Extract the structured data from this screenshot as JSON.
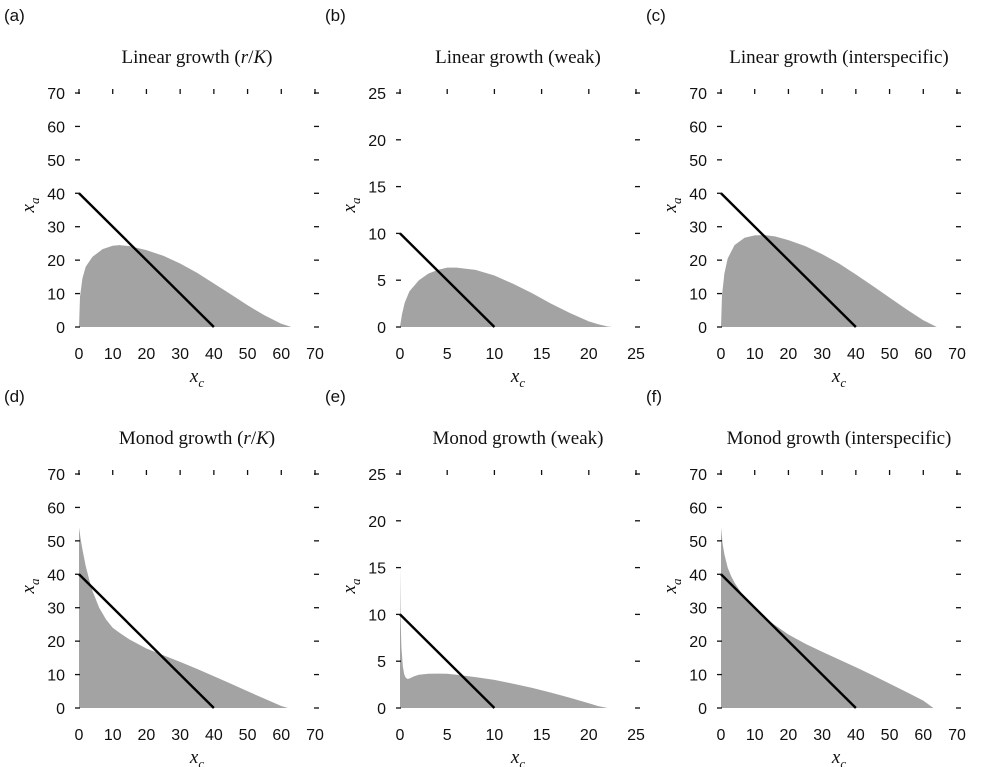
{
  "chart_data": [
    {
      "id": "a",
      "letter": "(a)",
      "title": "Linear growth (r/K)",
      "title_parts": [
        {
          "t": "Linear growth ("
        },
        {
          "t": "r",
          "i": true
        },
        {
          "t": "/"
        },
        {
          "t": "K",
          "i": true
        },
        {
          "t": ")"
        }
      ],
      "type": "area",
      "xlabel": "x",
      "xlabel_sub": "c",
      "ylabel": "x",
      "ylabel_sub": "a",
      "xlim": [
        0,
        70
      ],
      "ylim": [
        0,
        70
      ],
      "xticks": [
        0,
        10,
        20,
        30,
        40,
        50,
        60,
        70
      ],
      "yticks": [
        0,
        10,
        20,
        30,
        40,
        50,
        60,
        70
      ],
      "series": [
        {
          "name": "shaded region",
          "x": [
            0,
            0.3,
            1,
            2,
            4,
            7,
            10,
            12,
            15,
            20,
            25,
            30,
            35,
            40,
            45,
            50,
            55,
            60,
            63
          ],
          "y": [
            0,
            9,
            14.5,
            18,
            21,
            23.3,
            24.3,
            24.5,
            24.2,
            23,
            21.3,
            19,
            16.2,
            13,
            9.8,
            6.5,
            3.5,
            1,
            0
          ]
        },
        {
          "name": "nullcline",
          "x": [
            0,
            40
          ],
          "y": [
            40,
            0
          ]
        }
      ]
    },
    {
      "id": "b",
      "letter": "(b)",
      "title": "Linear growth (weak)",
      "title_parts": [
        {
          "t": "Linear growth (weak)"
        }
      ],
      "type": "area",
      "xlabel": "x",
      "xlabel_sub": "c",
      "ylabel": "x",
      "ylabel_sub": "a",
      "xlim": [
        0,
        25
      ],
      "ylim": [
        0,
        25
      ],
      "xticks": [
        0,
        5,
        10,
        15,
        20,
        25
      ],
      "yticks": [
        0,
        5,
        10,
        15,
        20,
        25
      ],
      "series": [
        {
          "name": "shaded region",
          "x": [
            0,
            0.2,
            0.5,
            1,
            2,
            3,
            4,
            5,
            6,
            8,
            10,
            12,
            14,
            16,
            18,
            20,
            21,
            22,
            22.5
          ],
          "y": [
            0,
            1.3,
            2.6,
            3.8,
            5,
            5.7,
            6.1,
            6.35,
            6.35,
            6.1,
            5.5,
            4.6,
            3.6,
            2.5,
            1.5,
            0.6,
            0.3,
            0.05,
            0
          ]
        },
        {
          "name": "nullcline",
          "x": [
            0,
            10
          ],
          "y": [
            10,
            0
          ]
        }
      ]
    },
    {
      "id": "c",
      "letter": "(c)",
      "title": "Linear growth (interspecific)",
      "title_parts": [
        {
          "t": "Linear growth (interspecific)"
        }
      ],
      "type": "area",
      "xlabel": "x",
      "xlabel_sub": "c",
      "ylabel": "x",
      "ylabel_sub": "a",
      "xlim": [
        0,
        70
      ],
      "ylim": [
        0,
        70
      ],
      "xticks": [
        0,
        10,
        20,
        30,
        40,
        50,
        60,
        70
      ],
      "yticks": [
        0,
        10,
        20,
        30,
        40,
        50,
        60,
        70
      ],
      "series": [
        {
          "name": "shaded region",
          "x": [
            0,
            0.3,
            1,
            2,
            4,
            7,
            10,
            13,
            16,
            20,
            25,
            30,
            35,
            40,
            45,
            50,
            55,
            60,
            64
          ],
          "y": [
            0,
            9.5,
            16,
            20.5,
            24.5,
            26.7,
            27.4,
            27.5,
            27.1,
            26,
            24.2,
            21.8,
            19,
            15.7,
            12.3,
            8.8,
            5.3,
            2,
            0
          ]
        },
        {
          "name": "nullcline",
          "x": [
            0,
            40
          ],
          "y": [
            40,
            0
          ]
        }
      ]
    },
    {
      "id": "d",
      "letter": "(d)",
      "title": "Monod growth (r/K)",
      "title_parts": [
        {
          "t": "Monod growth ("
        },
        {
          "t": "r",
          "i": true
        },
        {
          "t": "/"
        },
        {
          "t": "K",
          "i": true
        },
        {
          "t": ")"
        }
      ],
      "type": "area",
      "xlabel": "x",
      "xlabel_sub": "c",
      "ylabel": "x",
      "ylabel_sub": "a",
      "xlim": [
        0,
        70
      ],
      "ylim": [
        0,
        70
      ],
      "xticks": [
        0,
        10,
        20,
        30,
        40,
        50,
        60,
        70
      ],
      "yticks": [
        0,
        10,
        20,
        30,
        40,
        50,
        60,
        70
      ],
      "series": [
        {
          "name": "shaded region",
          "x": [
            0,
            0.5,
            1,
            2,
            3,
            4,
            6,
            8,
            10,
            12,
            15,
            20,
            25,
            30,
            35,
            40,
            45,
            50,
            55,
            60,
            62
          ],
          "y": [
            54,
            50.5,
            47.5,
            42.5,
            38.5,
            35,
            30,
            26.5,
            24,
            22.5,
            20.5,
            17.8,
            15.8,
            13.8,
            11.7,
            9.5,
            7.3,
            5,
            2.8,
            0.6,
            0
          ]
        },
        {
          "name": "nullcline",
          "x": [
            0,
            40
          ],
          "y": [
            40,
            0
          ]
        }
      ]
    },
    {
      "id": "e",
      "letter": "(e)",
      "title": "Monod growth (weak)",
      "title_parts": [
        {
          "t": "Monod growth (weak)"
        }
      ],
      "type": "area",
      "xlabel": "x",
      "xlabel_sub": "c",
      "ylabel": "x",
      "ylabel_sub": "a",
      "xlim": [
        0,
        25
      ],
      "ylim": [
        0,
        25
      ],
      "xticks": [
        0,
        5,
        10,
        15,
        20,
        25
      ],
      "yticks": [
        0,
        5,
        10,
        15,
        20,
        25
      ],
      "series": [
        {
          "name": "shaded region",
          "x": [
            0,
            0.05,
            0.15,
            0.3,
            0.45,
            0.6,
            0.8,
            1,
            1.5,
            2,
            3,
            4,
            5,
            6,
            8,
            10,
            12,
            14,
            16,
            18,
            20,
            21,
            22
          ],
          "y": [
            15,
            10,
            6.5,
            4.5,
            3.6,
            3.25,
            3.1,
            3.15,
            3.4,
            3.55,
            3.65,
            3.68,
            3.65,
            3.55,
            3.3,
            3,
            2.6,
            2.15,
            1.65,
            1.1,
            0.5,
            0.2,
            0
          ]
        },
        {
          "name": "nullcline",
          "x": [
            0,
            10
          ],
          "y": [
            10,
            0
          ]
        }
      ]
    },
    {
      "id": "f",
      "letter": "(f)",
      "title": "Monod growth (interspecific)",
      "title_parts": [
        {
          "t": "Monod growth (interspecific)"
        }
      ],
      "type": "area",
      "xlabel": "x",
      "xlabel_sub": "c",
      "ylabel": "x",
      "ylabel_sub": "a",
      "xlim": [
        0,
        70
      ],
      "ylim": [
        0,
        70
      ],
      "xticks": [
        0,
        10,
        20,
        30,
        40,
        50,
        60,
        70
      ],
      "yticks": [
        0,
        10,
        20,
        30,
        40,
        50,
        60,
        70
      ],
      "series": [
        {
          "name": "shaded region",
          "x": [
            0,
            0.5,
            1,
            2,
            3,
            4,
            6,
            8,
            10,
            12,
            15,
            20,
            25,
            30,
            35,
            40,
            45,
            50,
            55,
            60,
            63
          ],
          "y": [
            54,
            49,
            46,
            42,
            39.5,
            37.5,
            34.5,
            32,
            30,
            28,
            25.5,
            22,
            19.2,
            16.8,
            14.5,
            12.2,
            9.8,
            7.3,
            4.8,
            2.2,
            0
          ]
        },
        {
          "name": "nullcline",
          "x": [
            0,
            40
          ],
          "y": [
            40,
            0
          ]
        }
      ]
    }
  ]
}
